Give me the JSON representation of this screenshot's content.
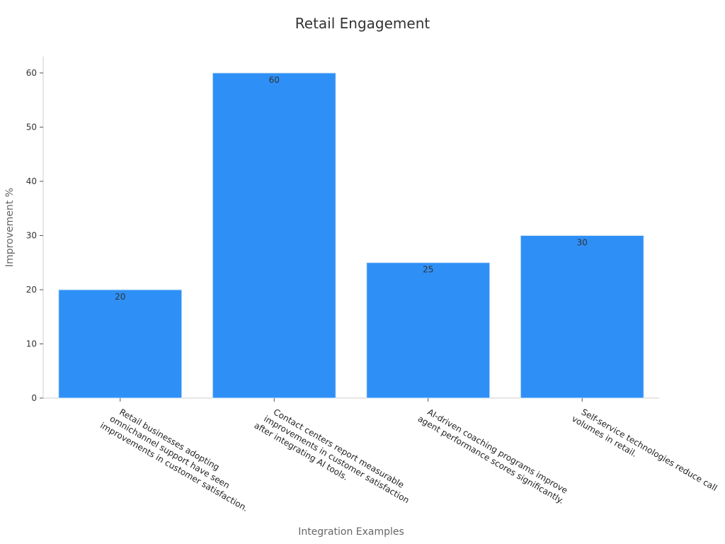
{
  "chart_data": {
    "type": "bar",
    "title": "Retail Engagement",
    "xlabel": "Integration Examples",
    "ylabel": "Improvement %",
    "categories": [
      [
        "Retail businesses adopting",
        "omnichannel support have seen",
        "improvements in customer satisfaction."
      ],
      [
        "Contact centers report measurable",
        "improvements in customer satisfaction",
        "after integrating AI tools."
      ],
      [
        "AI-driven coaching programs improve",
        "agent performance scores significantly."
      ],
      [
        "Self-service technologies reduce call",
        "volumes in retail."
      ]
    ],
    "values": [
      20,
      60,
      25,
      30
    ],
    "data_labels": [
      "20",
      "60",
      "25",
      "30"
    ],
    "ylim": [
      0,
      63
    ],
    "yticks": [
      0,
      10,
      20,
      30,
      40,
      50,
      60
    ],
    "ytick_labels": [
      "0",
      "10",
      "20",
      "30",
      "40",
      "50",
      "60"
    ],
    "grid": false,
    "legend": "none",
    "colors": {
      "bar": "#2e90f7",
      "bar_edge": "#dde8f5",
      "axis": "#cccccc",
      "text": "#333333"
    }
  }
}
